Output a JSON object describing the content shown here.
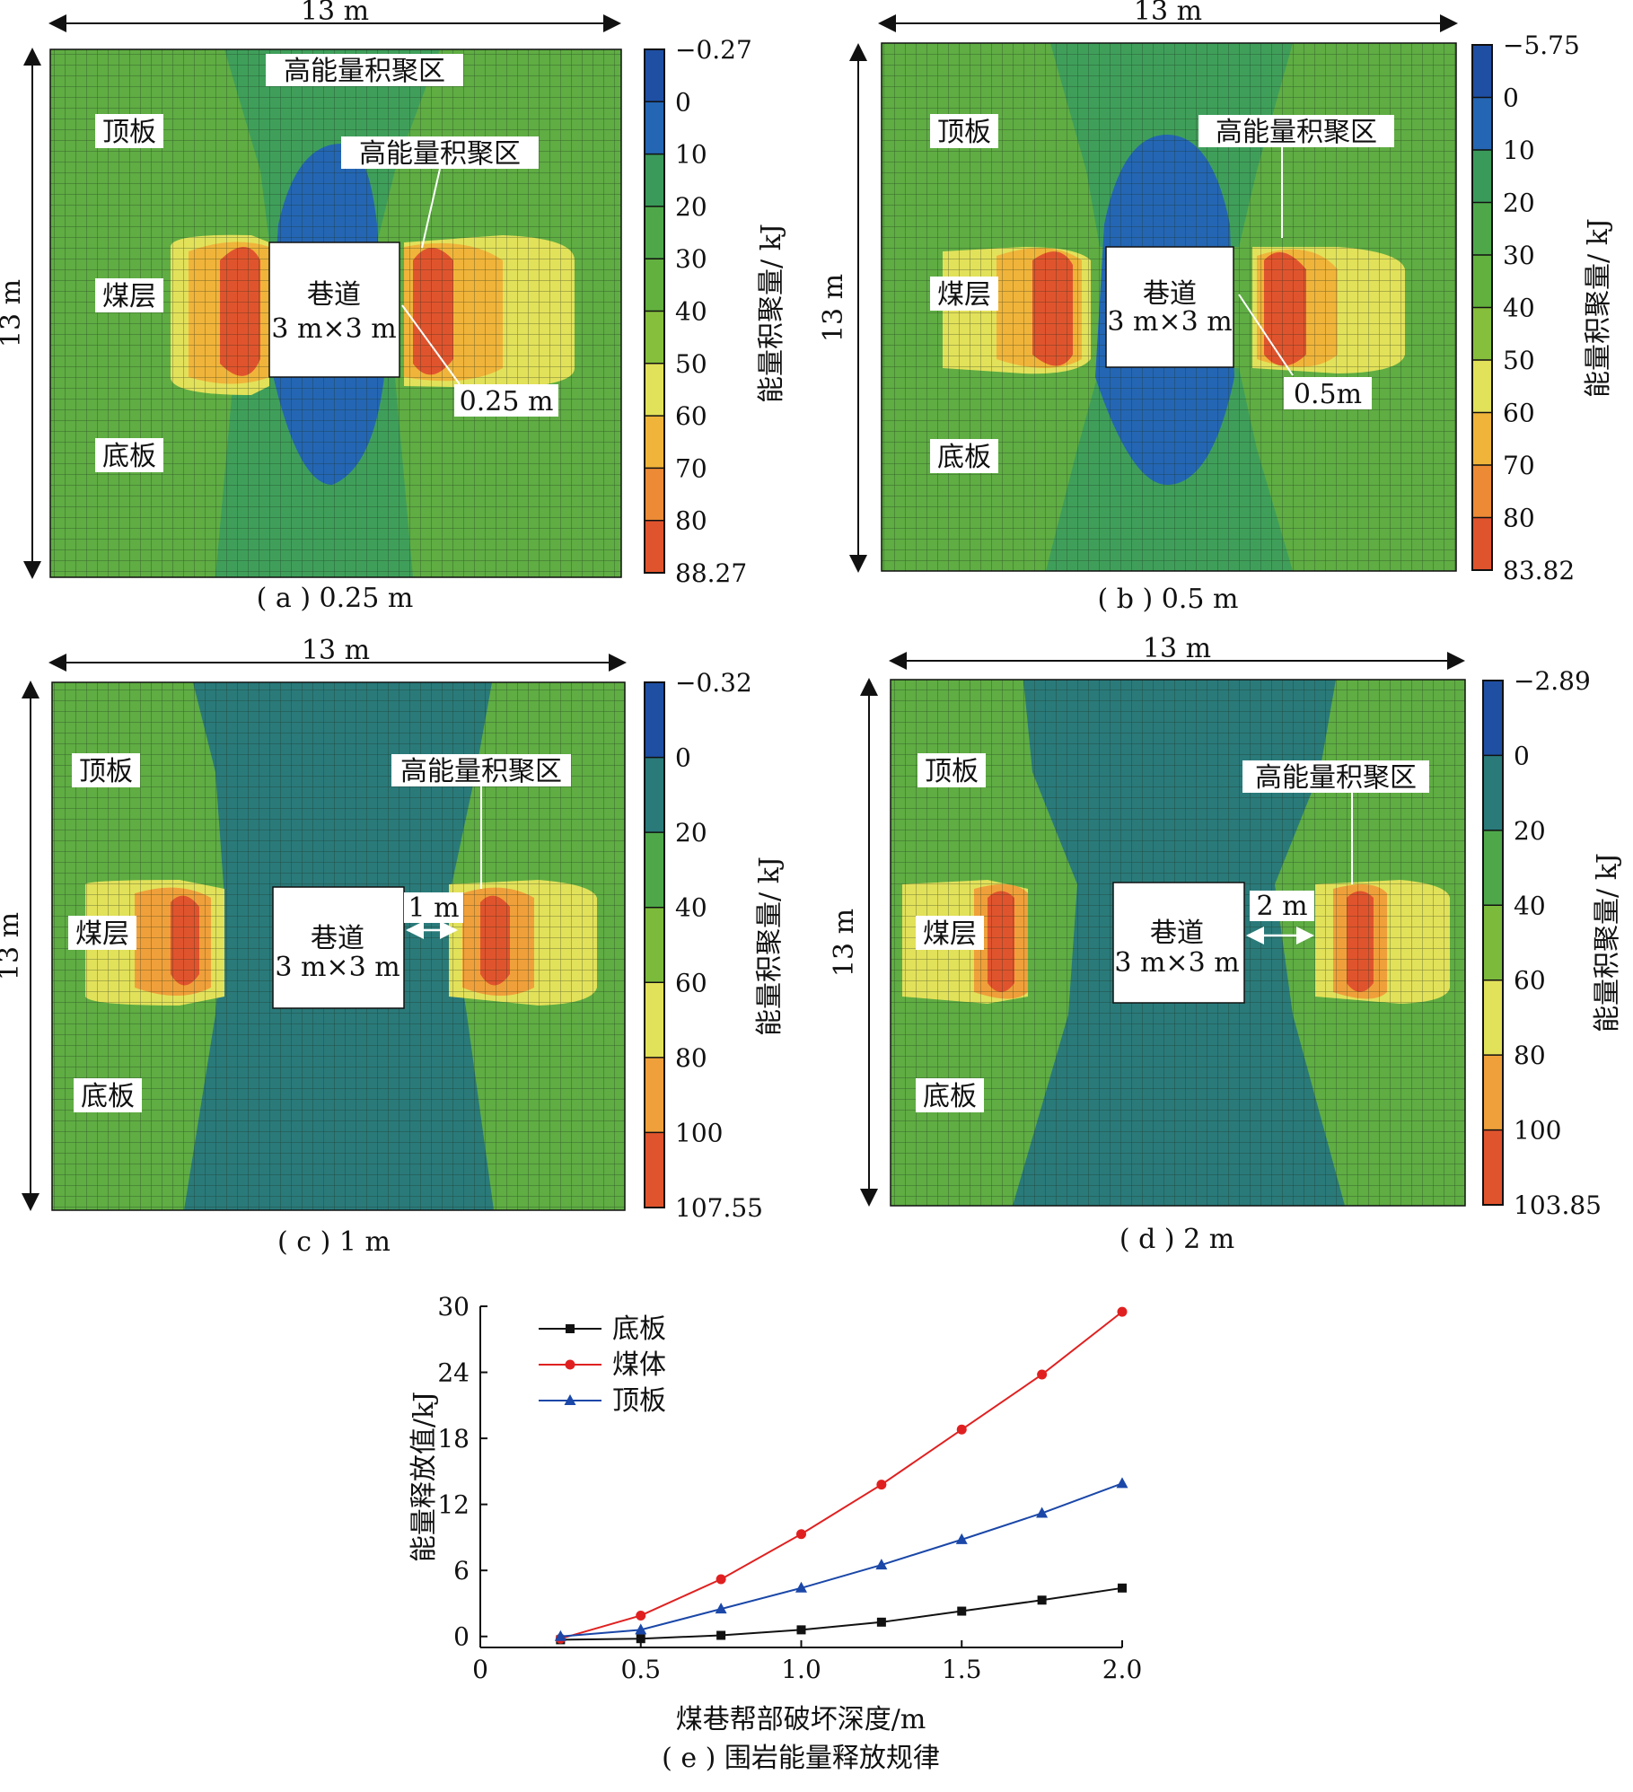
{
  "panels": [
    {
      "caption": "( a ) 0.25 m",
      "width_label": "13 m",
      "height_label": "13 m",
      "roadway_label_1": "巷道",
      "roadway_label_2": "3 m×3 m",
      "roof_label": "顶板",
      "coal_label": "煤层",
      "floor_label": "底板",
      "zone_labels": [
        "高能量积聚区",
        "高能量积聚区"
      ],
      "distance_label": "0.25 m",
      "colorbar": {
        "title": "能量积聚量/ kJ",
        "ticks": [
          "−0.27",
          "0",
          "10",
          "20",
          "30",
          "40",
          "50",
          "60",
          "70",
          "80",
          "88.27"
        ],
        "colors": [
          "#1f4fa3",
          "#2466b3",
          "#3a9a5a",
          "#4ea84a",
          "#62b03e",
          "#86bf3c",
          "#e2e15a",
          "#f0b43a",
          "#ec8a35",
          "#e0542d"
        ]
      }
    },
    {
      "caption": "( b ) 0.5 m",
      "width_label": "13 m",
      "height_label": "13 m",
      "roadway_label_1": "巷道",
      "roadway_label_2": "3 m×3 m",
      "roof_label": "顶板",
      "coal_label": "煤层",
      "floor_label": "底板",
      "zone_labels": [
        "高能量积聚区"
      ],
      "distance_label": "0.5m",
      "colorbar": {
        "title": "能量积聚量/ kJ",
        "ticks": [
          "−5.75",
          "0",
          "10",
          "20",
          "30",
          "40",
          "50",
          "60",
          "70",
          "80",
          "83.82"
        ],
        "colors": [
          "#1f4fa3",
          "#2466b3",
          "#3a9a5a",
          "#4ea84a",
          "#62b03e",
          "#86bf3c",
          "#e2e15a",
          "#f0b43a",
          "#ec8a35",
          "#e0542d"
        ]
      }
    },
    {
      "caption": "( c ) 1 m",
      "width_label": "13 m",
      "height_label": "13 m",
      "roadway_label_1": "巷道",
      "roadway_label_2": "3 m×3 m",
      "roof_label": "顶板",
      "coal_label": "煤层",
      "floor_label": "底板",
      "zone_labels": [
        "高能量积聚区"
      ],
      "distance_label": "1 m",
      "colorbar": {
        "title": "能量积聚量/ kJ",
        "ticks": [
          "−0.32",
          "0",
          "20",
          "40",
          "60",
          "80",
          "100",
          "107.55"
        ],
        "colors": [
          "#1f4fa3",
          "#2a7a7a",
          "#4ea84a",
          "#7cba3c",
          "#e2e15a",
          "#f0a03a",
          "#e0542d"
        ]
      }
    },
    {
      "caption": "( d ) 2 m",
      "width_label": "13 m",
      "height_label": "13 m",
      "roadway_label_1": "巷道",
      "roadway_label_2": "3 m×3 m",
      "roof_label": "顶板",
      "coal_label": "煤层",
      "floor_label": "底板",
      "zone_labels": [
        "高能量积聚区"
      ],
      "distance_label": "2  m",
      "colorbar": {
        "title": "能量积聚量/ kJ",
        "ticks": [
          "−2.89",
          "0",
          "20",
          "40",
          "60",
          "80",
          "100",
          "103.85"
        ],
        "colors": [
          "#1f4fa3",
          "#2a7a7a",
          "#4ea84a",
          "#7cba3c",
          "#e2e15a",
          "#f0a03a",
          "#e0542d"
        ]
      }
    }
  ],
  "chart_data": {
    "type": "line",
    "caption": "( e ) 围岩能量释放规律",
    "xlabel": "煤巷帮部破坏深度/m",
    "ylabel": "能量释放值/kJ",
    "xlim": [
      0,
      2.0
    ],
    "ylim": [
      -1,
      30
    ],
    "xticks": [
      "0",
      "0.5",
      "1.0",
      "1.5",
      "2.0"
    ],
    "yticks": [
      "0",
      "6",
      "12",
      "18",
      "24",
      "30"
    ],
    "x": [
      0.25,
      0.5,
      0.75,
      1.0,
      1.25,
      1.5,
      1.75,
      2.0
    ],
    "legend_position": "top-left",
    "series": [
      {
        "name": "底板",
        "color": "#111111",
        "marker": "square",
        "values": [
          -0.3,
          -0.2,
          0.1,
          0.6,
          1.3,
          2.3,
          3.3,
          4.4
        ]
      },
      {
        "name": "煤体",
        "color": "#e02020",
        "marker": "circle",
        "values": [
          -0.2,
          1.9,
          5.2,
          9.3,
          13.8,
          18.8,
          23.8,
          29.5
        ]
      },
      {
        "name": "顶板",
        "color": "#1a47a8",
        "marker": "triangle",
        "values": [
          0.0,
          0.6,
          2.5,
          4.4,
          6.5,
          8.8,
          11.2,
          13.9
        ]
      }
    ]
  }
}
